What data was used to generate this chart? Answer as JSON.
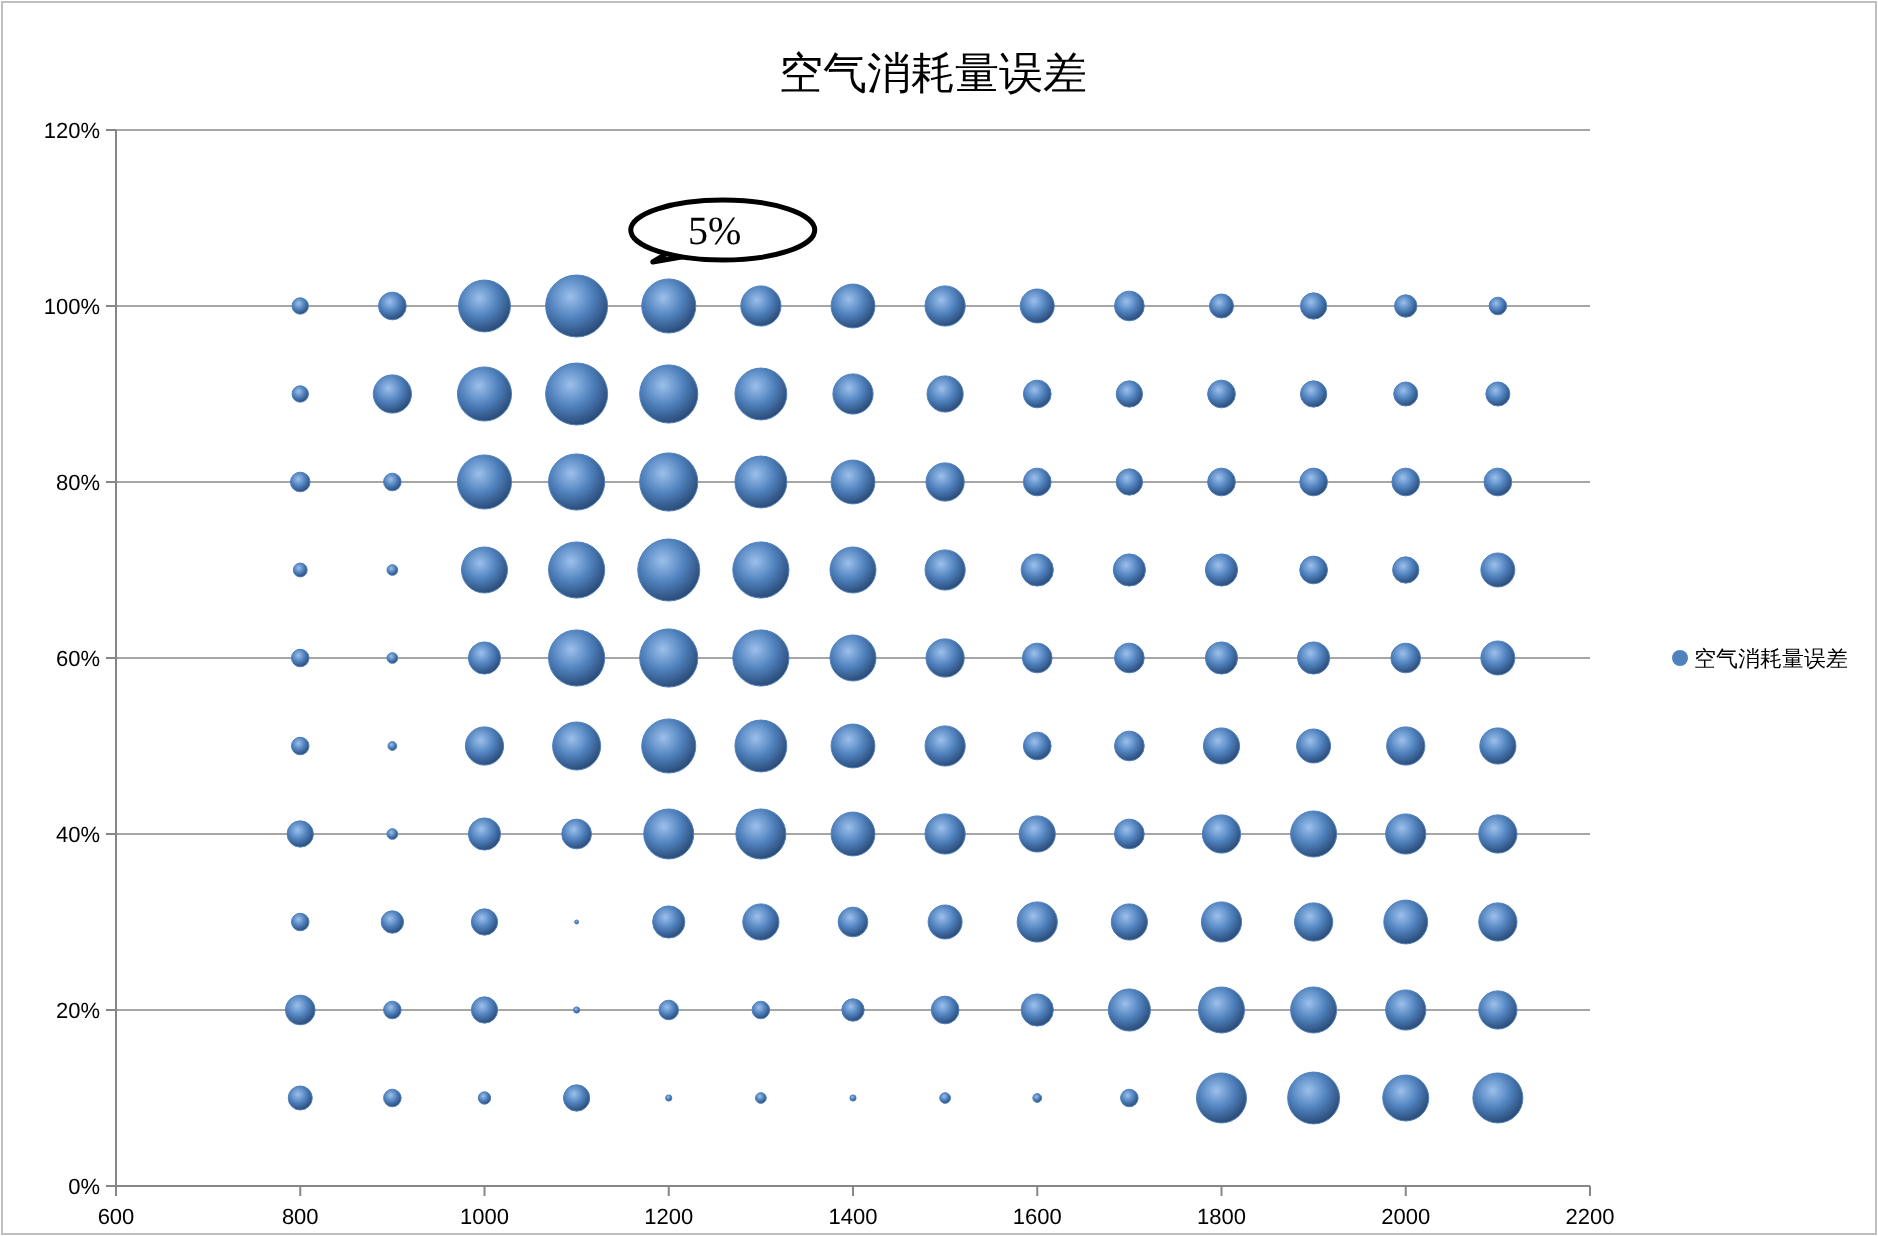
{
  "chart_data": {
    "type": "bubble",
    "title": "空气消耗量误差",
    "xlim": [
      600,
      2200
    ],
    "xticks": [
      600,
      800,
      1000,
      1200,
      1400,
      1600,
      1800,
      2000,
      2200
    ],
    "ylim": [
      0,
      120
    ],
    "yticks": [
      {
        "value": 0,
        "label": "0%"
      },
      {
        "value": 20,
        "label": "20%"
      },
      {
        "value": 40,
        "label": "40%"
      },
      {
        "value": 60,
        "label": "60%"
      },
      {
        "value": 80,
        "label": "80%"
      },
      {
        "value": 100,
        "label": "100%"
      },
      {
        "value": 120,
        "label": "120%"
      }
    ],
    "grid": "y",
    "legend": "right",
    "annotations": [
      {
        "text": "5%",
        "x": 1200,
        "y": 100
      }
    ],
    "series": [
      {
        "name": "空气消耗量误差",
        "color": "#4f81bd",
        "x": [
          800,
          900,
          1000,
          1100,
          1200,
          1300,
          1400,
          1500,
          1600,
          1700,
          1800,
          1900,
          2000,
          2100,
          800,
          900,
          1000,
          1100,
          1200,
          1300,
          1400,
          1500,
          1600,
          1700,
          1800,
          1900,
          2000,
          2100,
          800,
          900,
          1000,
          1100,
          1200,
          1300,
          1400,
          1500,
          1600,
          1700,
          1800,
          1900,
          2000,
          2100,
          800,
          900,
          1000,
          1100,
          1200,
          1300,
          1400,
          1500,
          1600,
          1700,
          1800,
          1900,
          2000,
          2100,
          800,
          900,
          1000,
          1100,
          1200,
          1300,
          1400,
          1500,
          1600,
          1700,
          1800,
          1900,
          2000,
          2100,
          800,
          900,
          1000,
          1100,
          1200,
          1300,
          1400,
          1500,
          1600,
          1700,
          1800,
          1900,
          2000,
          2100,
          800,
          900,
          1000,
          1100,
          1200,
          1300,
          1400,
          1500,
          1600,
          1700,
          1800,
          1900,
          2000,
          2100,
          800,
          900,
          1000,
          1100,
          1200,
          1300,
          1400,
          1500,
          1600,
          1700,
          1800,
          1900,
          2000,
          2100,
          800,
          900,
          1000,
          1100,
          1200,
          1300,
          1400,
          1500,
          1600,
          1700,
          1800,
          1900,
          2000,
          2100,
          800,
          900,
          1000,
          1100,
          1200,
          1300,
          1400,
          1500,
          1600,
          1700,
          1800,
          1900,
          2000,
          2100
        ],
        "values": [
          100,
          100,
          100,
          100,
          100,
          100,
          100,
          100,
          100,
          100,
          100,
          100,
          100,
          100,
          90,
          90,
          90,
          90,
          90,
          90,
          90,
          90,
          90,
          90,
          90,
          90,
          90,
          90,
          80,
          80,
          80,
          80,
          80,
          80,
          80,
          80,
          80,
          80,
          80,
          80,
          80,
          80,
          70,
          70,
          70,
          70,
          70,
          70,
          70,
          70,
          70,
          70,
          70,
          70,
          70,
          70,
          60,
          60,
          60,
          60,
          60,
          60,
          60,
          60,
          60,
          60,
          60,
          60,
          60,
          60,
          50,
          50,
          50,
          50,
          50,
          50,
          50,
          50,
          50,
          50,
          50,
          50,
          50,
          50,
          40,
          40,
          40,
          40,
          40,
          40,
          40,
          40,
          40,
          40,
          40,
          40,
          40,
          40,
          30,
          30,
          30,
          30,
          30,
          30,
          30,
          30,
          30,
          30,
          30,
          30,
          30,
          30,
          20,
          20,
          20,
          20,
          20,
          20,
          20,
          20,
          20,
          20,
          20,
          20,
          20,
          20,
          10,
          10,
          10,
          10,
          10,
          10,
          10,
          10,
          10,
          10,
          10,
          10,
          10,
          10
        ],
        "sizes": [
          0.07,
          0.2,
          0.7,
          1,
          0.76,
          0.42,
          0.5,
          0.42,
          0.3,
          0.23,
          0.15,
          0.18,
          0.13,
          0.08,
          0.07,
          0.38,
          0.76,
          1,
          0.88,
          0.7,
          0.42,
          0.34,
          0.2,
          0.18,
          0.2,
          0.18,
          0.15,
          0.15,
          0.1,
          0.08,
          0.76,
          0.82,
          0.88,
          0.7,
          0.5,
          0.38,
          0.2,
          0.18,
          0.2,
          0.2,
          0.2,
          0.2,
          0.05,
          0.03,
          0.55,
          0.82,
          1,
          0.82,
          0.55,
          0.42,
          0.27,
          0.27,
          0.27,
          0.2,
          0.18,
          0.3,
          0.08,
          0.03,
          0.27,
          0.82,
          0.88,
          0.82,
          0.55,
          0.38,
          0.23,
          0.23,
          0.27,
          0.27,
          0.23,
          0.3,
          0.08,
          0.02,
          0.38,
          0.6,
          0.76,
          0.7,
          0.5,
          0.42,
          0.2,
          0.23,
          0.34,
          0.3,
          0.38,
          0.34,
          0.18,
          0.03,
          0.27,
          0.23,
          0.65,
          0.65,
          0.5,
          0.42,
          0.34,
          0.23,
          0.38,
          0.55,
          0.42,
          0.38,
          0.08,
          0.13,
          0.18,
          0.004,
          0.27,
          0.34,
          0.23,
          0.3,
          0.42,
          0.34,
          0.42,
          0.38,
          0.5,
          0.38,
          0.23,
          0.08,
          0.18,
          0.01,
          0.1,
          0.08,
          0.13,
          0.2,
          0.27,
          0.46,
          0.55,
          0.55,
          0.42,
          0.38,
          0.15,
          0.08,
          0.04,
          0.18,
          0.01,
          0.03,
          0.01,
          0.03,
          0.02,
          0.08,
          0.65,
          0.7,
          0.55,
          0.65
        ]
      }
    ]
  }
}
